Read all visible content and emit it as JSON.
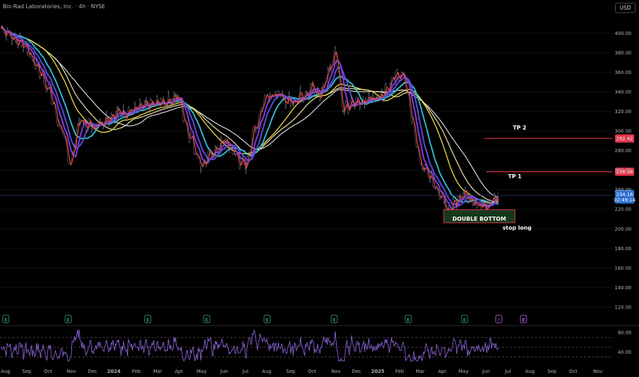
{
  "header": {
    "symbol": "Bio-Rad Laboratories, Inc. · 4h · NYSE",
    "currency": "USD"
  },
  "colors": {
    "price": "#e8453c",
    "ma_fast": "#7b3fe4",
    "ma_mid": "#5b4ad6",
    "ma_cyan": "#2ec4d9",
    "ma_yellow": "#f0e04a",
    "ma_cream": "#f3e6b0",
    "ma_white": "#e8e8e8",
    "rsi": "#8a62d6",
    "tp_line": "#e0334a",
    "box": "#16381b",
    "box_border": "#e0334a",
    "earnings": "#2e8b57",
    "earnings_next": "#9b59d0"
  },
  "chart_data": [
    {
      "type": "line",
      "title": "Bio-Rad Laboratories, Inc. · 4h · NYSE",
      "yaxis": {
        "ticks": [
          120,
          140,
          160,
          180,
          200,
          220,
          240,
          260,
          280,
          300,
          320,
          340,
          360,
          380,
          400
        ],
        "range": [
          115,
          420
        ]
      },
      "x_ticks": [
        "Aug",
        "Sep",
        "Oct",
        "Nov",
        "Dec",
        "2024",
        "Feb",
        "Mar",
        "Apr",
        "May",
        "Jun",
        "Jul",
        "Aug",
        "Sep",
        "Oct",
        "Nov",
        "Dec",
        "2025",
        "Feb",
        "Mar",
        "Apr",
        "May",
        "Jun",
        "Jul",
        "Aug",
        "Sep",
        "Oct",
        "Nov"
      ],
      "x_bold": [
        "2024",
        "2025"
      ],
      "price_path": [
        [
          "Aug",
          405
        ],
        [
          "Sep",
          385
        ],
        [
          "Oct",
          345
        ],
        [
          "Nov",
          265
        ],
        [
          "Nov",
          310
        ],
        [
          "Dec",
          305
        ],
        [
          "2024",
          318
        ],
        [
          "Feb",
          322
        ],
        [
          "Mar",
          328
        ],
        [
          "Apr",
          335
        ],
        [
          "Apr",
          305
        ],
        [
          "May",
          265
        ],
        [
          "Jun",
          290
        ],
        [
          "Jul",
          262
        ],
        [
          "Jul",
          295
        ],
        [
          "Aug",
          340
        ],
        [
          "Sep",
          330
        ],
        [
          "Oct",
          345
        ],
        [
          "Oct",
          335
        ],
        [
          "Nov",
          385
        ],
        [
          "Nov",
          320
        ],
        [
          "Dec",
          330
        ],
        [
          "2025",
          335
        ],
        [
          "Feb",
          360
        ],
        [
          "Feb",
          345
        ],
        [
          "Mar",
          265
        ],
        [
          "Apr",
          235
        ],
        [
          "Apr",
          218
        ],
        [
          "May",
          238
        ],
        [
          "May",
          225
        ],
        [
          "Jun",
          222
        ],
        [
          "Jun",
          230
        ],
        [
          "Jun",
          234.16
        ]
      ],
      "last_price": "234.16",
      "countdown": "02:49:14",
      "levels": [
        {
          "name": "TP 2",
          "value": 292.42,
          "label": "292.42"
        },
        {
          "name": "TP 1",
          "value": 258.38,
          "label": "258.38"
        }
      ],
      "annotations": {
        "box_label": "DOUBLE BOTTOM",
        "stop_label": "stop long",
        "tp1_label": "TP 1",
        "tp2_label": "TP 2"
      },
      "earnings_markers": [
        "E",
        "E",
        "E",
        "E",
        "E",
        "E",
        "E",
        "E",
        "⚡",
        "E"
      ]
    },
    {
      "type": "line",
      "yaxis": {
        "ticks": [
          40,
          80
        ],
        "range": [
          20,
          90
        ],
        "bands": [
          30,
          50,
          70
        ]
      },
      "y_tick_labels": [
        "40.00",
        "80.00"
      ],
      "rsi_series_note": ""
    }
  ]
}
